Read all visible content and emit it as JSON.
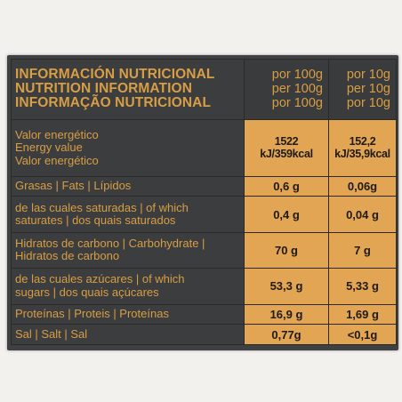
{
  "header": {
    "title_lines": [
      "INFORMACIÓN NUTRICIONAL",
      "NUTRITION INFORMATION",
      "INFORMAÇÃO NUTRICIONAL"
    ],
    "per100_lines": [
      "por 100g",
      "per 100g",
      "por 100g"
    ],
    "per10_lines": [
      "por 10g",
      "per 10g",
      "por 10g"
    ]
  },
  "rows": [
    {
      "label_lines": [
        "Valor energético",
        "Energy value",
        "Valor energético"
      ],
      "per100": "1522 kJ/359kcal",
      "per10": "152,2 kJ/35,9kcal"
    },
    {
      "label_lines": [
        "Grasas | Fats | Lípidos"
      ],
      "per100": "0,6 g",
      "per10": "0,06g"
    },
    {
      "label_lines": [
        "de las cuales saturadas | of which",
        "saturates | dos quais saturados"
      ],
      "per100": "0,4 g",
      "per10": "0,04 g"
    },
    {
      "label_lines": [
        "Hidratos de carbono | Carbohydrate |",
        "Hidratos de carbono"
      ],
      "per100": "70 g",
      "per10": "7 g"
    },
    {
      "label_lines": [
        "de las cuales azúcares | of which",
        "sugars | dos quais açúcares"
      ],
      "per100": "53,3 g",
      "per10": "5,33 g"
    },
    {
      "label_lines": [
        "Proteínas | Proteis | Proteínas"
      ],
      "per100": "16,9 g",
      "per10": "1,69 g"
    },
    {
      "label_lines": [
        "Sal | Salt | Sal"
      ],
      "per100": "0,77g",
      "per10": "<0,1g"
    }
  ],
  "colors": {
    "label_text": "#d89e45",
    "value_bg": "#e2a553",
    "panel_bg": "#3c3d3e"
  }
}
